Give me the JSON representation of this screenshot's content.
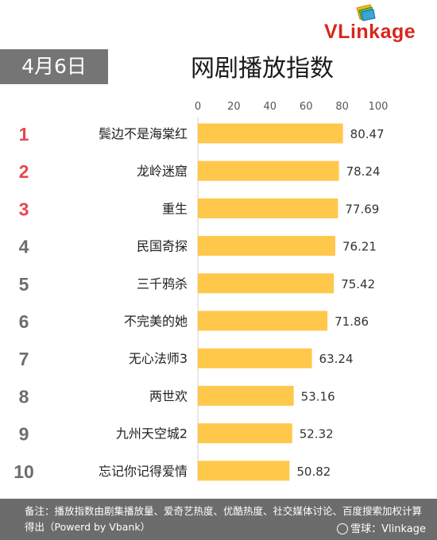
{
  "brand": {
    "text": "VLinkage"
  },
  "header": {
    "date": "4月6日",
    "title": "网剧播放指数"
  },
  "chart_data": {
    "type": "bar",
    "orientation": "horizontal",
    "xlim": [
      0,
      100
    ],
    "ticks": [
      0,
      20,
      40,
      60,
      80,
      100
    ],
    "bar_color": "#ffc84a",
    "rank_colors": {
      "top3": "#e8474f",
      "rest": "#6d6d6d"
    },
    "ranks": [
      "1",
      "2",
      "3",
      "4",
      "5",
      "6",
      "7",
      "8",
      "9",
      "10"
    ],
    "categories": [
      "鬓边不是海棠红",
      "龙岭迷窟",
      "重生",
      "民国奇探",
      "三千鸦杀",
      "不完美的她",
      "无心法师3",
      "两世欢",
      "九州天空城2",
      "忘记你记得爱情"
    ],
    "values": [
      80.47,
      78.24,
      77.69,
      76.21,
      75.42,
      71.86,
      63.24,
      53.16,
      52.32,
      50.82
    ],
    "value_labels": [
      "80.47",
      "78.24",
      "77.69",
      "76.21",
      "75.42",
      "71.86",
      "63.24",
      "53.16",
      "52.32",
      "50.82"
    ]
  },
  "footer": {
    "note": "备注：播放指数由剧集播放量、爱奇艺热度、优酷热度、社交媒体讨论、百度搜索加权计算得出（Powerd by Vbank）",
    "source": "雪球：Vlinkage"
  }
}
